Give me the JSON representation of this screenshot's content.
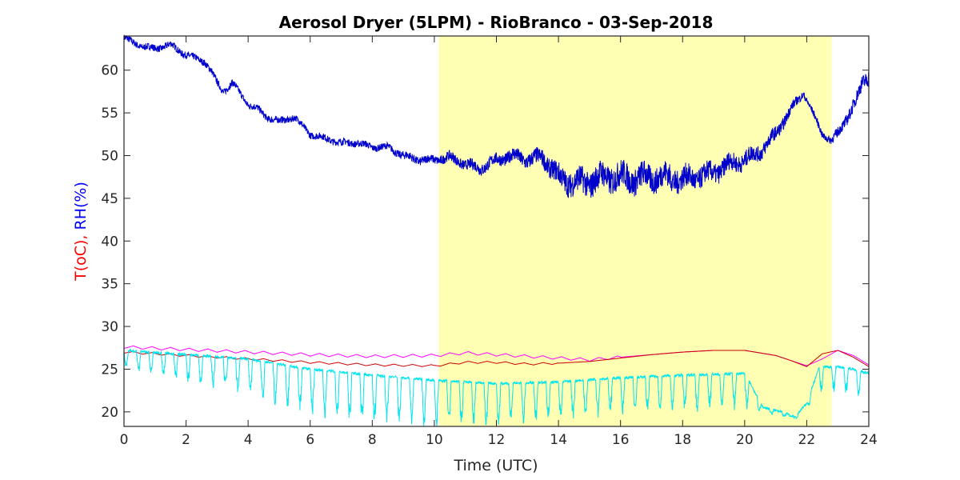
{
  "chart_data": {
    "type": "line",
    "title": "Aerosol Dryer (5LPM) - RioBranco - 03-Sep-2018",
    "xlabel": "Time (UTC)",
    "ylabel_parts": [
      {
        "text": "T(oC), ",
        "color": "#ff0000"
      },
      {
        "text": "RH(%)",
        "color": "#0000ff"
      }
    ],
    "xlim": [
      0,
      24
    ],
    "ylim": [
      18.3,
      64
    ],
    "xticks": [
      0,
      2,
      4,
      6,
      8,
      10,
      12,
      14,
      16,
      18,
      20,
      22,
      24
    ],
    "yticks": [
      20,
      25,
      30,
      35,
      40,
      45,
      50,
      55,
      60
    ],
    "grid": false,
    "highlight": {
      "x_start": 10.15,
      "x_end": 22.8,
      "color": "#ffffb3"
    },
    "series": [
      {
        "color": "#0000cc",
        "x": [
          0,
          0.3,
          0.6,
          1.0,
          1.5,
          1.8,
          2.2,
          2.6,
          2.8,
          3.0,
          3.2,
          3.5,
          3.8,
          4.0,
          4.3,
          4.6,
          5.0,
          5.5,
          6.0,
          6.5,
          7.0,
          7.5,
          8.0,
          8.5,
          9.0,
          9.5,
          10.0,
          10.5,
          11.0,
          11.5,
          12.0,
          12.5,
          13.0,
          13.5,
          14.0,
          14.5,
          15.0,
          15.5,
          16.0,
          16.5,
          17.0,
          17.5,
          18.0,
          18.5,
          19.0,
          19.5,
          20.0,
          20.5,
          21.0,
          21.5,
          21.9,
          22.2,
          22.5,
          22.8,
          23.0,
          23.3,
          23.6,
          23.8,
          24.0
        ],
        "y": [
          63.8,
          63.2,
          62.8,
          62.5,
          63.0,
          62.2,
          61.5,
          61.0,
          60.0,
          58.5,
          57.5,
          58.5,
          57.0,
          56.0,
          55.5,
          54.5,
          54.0,
          54.5,
          52.5,
          52.0,
          51.5,
          51.5,
          51.0,
          51.0,
          50.0,
          49.5,
          49.5,
          49.8,
          49.0,
          48.5,
          49.5,
          50.0,
          49.5,
          49.8,
          47.5,
          46.8,
          47.0,
          47.5,
          47.5,
          47.3,
          47.5,
          47.5,
          47.2,
          47.5,
          48.0,
          49.0,
          49.5,
          50.5,
          52.5,
          55.5,
          57.3,
          55.0,
          52.5,
          51.8,
          52.5,
          54.5,
          56.5,
          58.5,
          59.5
        ],
        "noise": [
          0.4,
          0.4,
          0.4,
          0.4,
          0.4,
          0.4,
          0.4,
          0.4,
          0.4,
          0.4,
          0.4,
          0.4,
          0.4,
          0.4,
          0.4,
          0.4,
          0.4,
          0.4,
          0.4,
          0.4,
          0.4,
          0.4,
          0.4,
          0.4,
          0.5,
          0.5,
          0.5,
          0.6,
          0.6,
          0.7,
          0.7,
          0.8,
          0.9,
          1.0,
          1.3,
          1.5,
          1.6,
          1.6,
          1.6,
          1.6,
          1.5,
          1.5,
          1.4,
          1.3,
          1.2,
          1.1,
          1.0,
          0.9,
          0.8,
          0.6,
          0.4,
          0.4,
          0.4,
          0.5,
          0.6,
          0.7,
          0.8,
          0.9,
          1.0
        ]
      },
      {
        "color": "#ff00ff",
        "x": [
          0,
          2,
          4,
          6,
          8,
          10,
          11,
          12,
          13,
          14,
          15,
          16,
          17,
          18,
          19,
          20,
          21,
          21.5,
          22.0,
          22.5,
          23.0,
          23.5,
          24.0
        ],
        "y": [
          27.6,
          27.3,
          27.0,
          26.7,
          26.5,
          26.6,
          26.9,
          26.7,
          26.5,
          26.3,
          26.1,
          26.4,
          26.7,
          27.0,
          27.2,
          27.2,
          26.6,
          26.0,
          25.4,
          26.2,
          27.2,
          26.6,
          25.5
        ],
        "wiggle_amp": 0.35,
        "wiggle_period": 0.6,
        "wiggle_end": 16
      },
      {
        "color": "#cc0000",
        "x": [
          0,
          2,
          4,
          6,
          8,
          10,
          11,
          12,
          13,
          14,
          15,
          16,
          17,
          18,
          19,
          20,
          21,
          21.5,
          22.0,
          22.5,
          23.0,
          23.5,
          24.0
        ],
        "y": [
          27.0,
          26.6,
          26.2,
          25.8,
          25.5,
          25.4,
          25.8,
          25.8,
          25.6,
          25.7,
          25.9,
          26.3,
          26.7,
          27.0,
          27.2,
          27.2,
          26.6,
          26.0,
          25.3,
          26.8,
          27.2,
          26.4,
          25.3
        ],
        "wiggle_amp": 0.25,
        "wiggle_period": 0.6,
        "wiggle_end": 14
      },
      {
        "color": "#00e5ee",
        "x": [
          0,
          4,
          6,
          8,
          10,
          12,
          14,
          16,
          18,
          20,
          20.6,
          21.2,
          21.6,
          22.0,
          22.4,
          23.0,
          23.5,
          24.0
        ],
        "y": [
          27.2,
          26.2,
          25.0,
          24.3,
          23.7,
          23.3,
          23.5,
          24.0,
          24.3,
          24.5,
          20.5,
          20.0,
          19.4,
          21.0,
          25.2,
          25.3,
          25.0,
          24.5
        ],
        "drop": [
          1.8,
          3.5,
          4.5,
          4.8,
          4.5,
          4.0,
          3.8,
          3.5,
          3.5,
          3.5,
          0.5,
          0.3,
          0.3,
          0.5,
          2.5,
          2.5,
          2.5,
          2.5
        ],
        "period": 0.4
      }
    ]
  }
}
